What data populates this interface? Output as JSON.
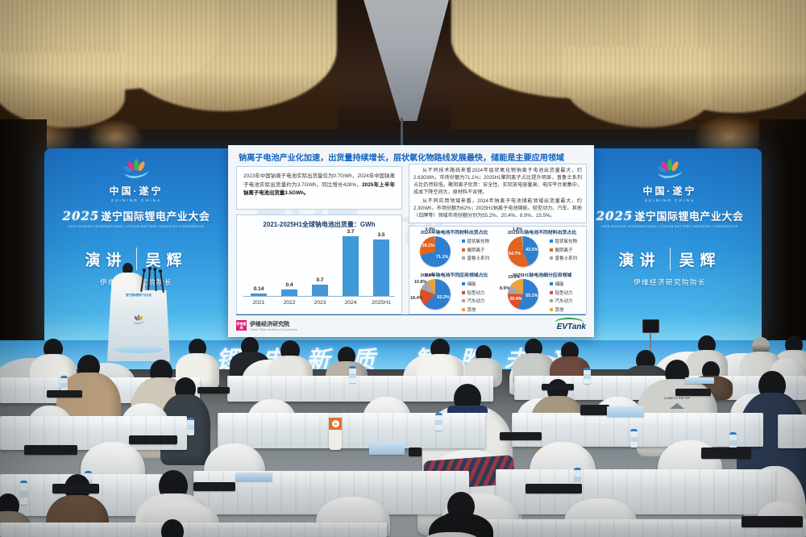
{
  "conference": {
    "logo_cn": "中国·遂宁",
    "logo_en": "SUINING CHINA",
    "year": "2025",
    "title_cn": "遂宁国际锂电产业大会",
    "title_en": "2025 SUINING INTERNATIONAL LITHIUM BATTERY INDUSTRY CONFERENCE",
    "session_label": "演讲",
    "speaker_name": "吴辉",
    "speaker_title": "伊维经济研究院院长"
  },
  "slide": {
    "title": "钠离子电池产业化加速，出货量持续增长，层状氧化物路线发展最快，储能是主要应用领域",
    "summary_text": "2023年中国钠离子电池实际出货量仅为0.7GWh，2024年中国钠离子电池实际出货量约为3.7GWh，同比增长428%，",
    "summary_bold": "2025年上半年钠离子电池出货量3.5GWh。",
    "detail_p1": "从不同技术路线来看2024年层状氧化物钠离子电池出货量最大，约2.63GWh，市场份额为71.1%；2025H1聚阴离子占比提升明显，普鲁士系列占比仍然较低。聚阴离子优势：安全性、实际放电容量高、电压平台更集中，成本下降空间大，原材料不含锂。",
    "detail_p2": "从不同应用领域来看，2024年钠离子电池储能领域出货量最大，约2.3GWh，市场份额为62%；2025H1钠离子电池储能、轻型动力、汽车、其他（白牌等）领域市场份额分别为55.2%、20.4%、8.9%、15.5%。",
    "source_logo_box": "伊维智库",
    "source_name": "伊维经济研究院",
    "source_en": "China YiWei Institute of Economics",
    "brand": "EVTank",
    "watermark": "EVTank"
  },
  "chart_data": [
    {
      "type": "bar",
      "title": "2021-2025H1全球钠电池出货量：GWh",
      "categories": [
        "2021",
        "2022",
        "2023",
        "2024",
        "2025H1"
      ],
      "values": [
        0.14,
        0.4,
        0.7,
        3.7,
        3.5
      ],
      "value_labels": [
        "0.14",
        "0.4",
        "0.7",
        "3.7",
        "3.5"
      ],
      "bar_color": "#3f99d8",
      "xlabel": "",
      "ylabel": "GWh",
      "ylim": [
        0,
        4
      ],
      "grid": false
    },
    {
      "type": "pie",
      "title": "2024年钠电池不同材料出货占比",
      "labels": [
        "层状氧化物",
        "聚阴离子",
        "普鲁士系列"
      ],
      "values": [
        71.1,
        28.1,
        0.8
      ],
      "colors": [
        "#2f7fd1",
        "#e2641e",
        "#a6a6a6"
      ],
      "legend_position": "right"
    },
    {
      "type": "pie",
      "title": "2025H1钠电池不同材料出货占比",
      "labels": [
        "层状氧化物",
        "聚阴离子",
        "普鲁士系列"
      ],
      "values": [
        43.5,
        54.7,
        1.8
      ],
      "colors": [
        "#2f7fd1",
        "#e2641e",
        "#a6a6a6"
      ],
      "legend_position": "right"
    },
    {
      "type": "pie",
      "title": "2024年钠电池不同应用领域占比",
      "labels": [
        "储能",
        "轻型动力",
        "汽车动力",
        "其他"
      ],
      "values": [
        62.2,
        18.4,
        10.8,
        8.6
      ],
      "colors": [
        "#2f7fd1",
        "#d9512c",
        "#a6a6a6",
        "#e8a33d"
      ],
      "legend_position": "right"
    },
    {
      "type": "pie",
      "title": "2025H1钠电池细分应用领域",
      "labels": [
        "储能",
        "轻型动力",
        "汽车动力",
        "其他"
      ],
      "values": [
        55.2,
        20.4,
        8.9,
        15.5
      ],
      "colors": [
        "#2f7fd1",
        "#d9512c",
        "#a6a6a6",
        "#e8a33d"
      ],
      "legend_position": "right"
    }
  ],
  "stage": {
    "slogan_left": "锂电新质",
    "slogan_right": "智胜未来"
  },
  "audience": {
    "bottle_label": "08",
    "tshirt_text": "CLIMB TO THE TOP"
  },
  "colors": {
    "led_blue": "#2b93dc",
    "slide_title_blue": "#1464c4",
    "source_pink": "#e01f7b",
    "evtank_green": "#2fa14c"
  }
}
